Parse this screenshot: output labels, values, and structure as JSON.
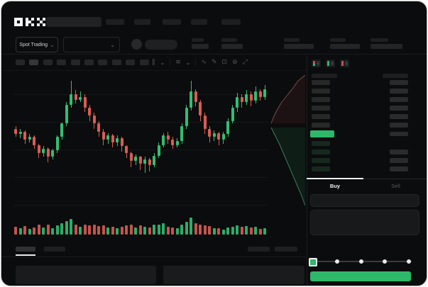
{
  "app": {
    "name": "OKX",
    "logo": "OKX"
  },
  "header": {
    "nav_placeholder_count": 5,
    "ticker_stat_count": 5
  },
  "trading_bar": {
    "market_selector_label": "Spot Trading",
    "chevron_glyph": "⌄"
  },
  "chart_toolbar": {
    "timeframe_button_count": 10,
    "active_timeframe_index": 1,
    "icons": [
      "candle-type-icon",
      "chevron-down-icon",
      "indicators-icon",
      "chevron-down-icon",
      "wave-icon",
      "draw-icon",
      "snapshot-icon",
      "settings-icon",
      "fullscreen-icon"
    ],
    "icon_glyphs": {
      "wave": "∿",
      "draw": "✎",
      "snapshot": "⊡",
      "settings": "⊚",
      "fullscreen": "⤢",
      "chevron": "⌄",
      "candles": "∥"
    }
  },
  "chart_data": {
    "type": "candlestick",
    "title": "",
    "x_count": 55,
    "price_range": [
      0,
      100
    ],
    "up_color": "#31be72",
    "down_color": "#d95c54",
    "grid": true,
    "grid_line_count": 5,
    "ohlc": [
      [
        58,
        54,
        60,
        52
      ],
      [
        54,
        56,
        58,
        51
      ],
      [
        56,
        50,
        57,
        47
      ],
      [
        50,
        52,
        54,
        48
      ],
      [
        52,
        46,
        53,
        43
      ],
      [
        46,
        40,
        47,
        36
      ],
      [
        40,
        43,
        45,
        37
      ],
      [
        43,
        37,
        44,
        33
      ],
      [
        37,
        42,
        43,
        35
      ],
      [
        42,
        52,
        53,
        40
      ],
      [
        52,
        62,
        63,
        50
      ],
      [
        62,
        76,
        78,
        60
      ],
      [
        76,
        84,
        94,
        74
      ],
      [
        84,
        80,
        87,
        77
      ],
      [
        80,
        82,
        86,
        78
      ],
      [
        82,
        74,
        84,
        71
      ],
      [
        74,
        68,
        76,
        64
      ],
      [
        68,
        62,
        70,
        58
      ],
      [
        62,
        56,
        64,
        52
      ],
      [
        56,
        50,
        58,
        46
      ],
      [
        50,
        53,
        55,
        47
      ],
      [
        53,
        48,
        54,
        44
      ],
      [
        48,
        51,
        53,
        45
      ],
      [
        51,
        45,
        52,
        41
      ],
      [
        45,
        40,
        46,
        36
      ],
      [
        40,
        34,
        41,
        29
      ],
      [
        34,
        37,
        39,
        31
      ],
      [
        37,
        32,
        38,
        27
      ],
      [
        32,
        35,
        37,
        25
      ],
      [
        35,
        31,
        36,
        26
      ],
      [
        31,
        38,
        40,
        29
      ],
      [
        38,
        46,
        48,
        36
      ],
      [
        46,
        53,
        55,
        44
      ],
      [
        53,
        50,
        56,
        47
      ],
      [
        50,
        46,
        52,
        43
      ],
      [
        46,
        49,
        51,
        44
      ],
      [
        49,
        60,
        62,
        47
      ],
      [
        60,
        74,
        76,
        58
      ],
      [
        74,
        86,
        94,
        72
      ],
      [
        86,
        78,
        88,
        75
      ],
      [
        78,
        68,
        80,
        64
      ],
      [
        68,
        58,
        70,
        54
      ],
      [
        58,
        52,
        60,
        48
      ],
      [
        52,
        55,
        57,
        49
      ],
      [
        55,
        50,
        56,
        46
      ],
      [
        50,
        54,
        56,
        47
      ],
      [
        54,
        64,
        66,
        52
      ],
      [
        64,
        74,
        76,
        62
      ],
      [
        74,
        82,
        85,
        71
      ],
      [
        82,
        78,
        84,
        74
      ],
      [
        78,
        84,
        87,
        76
      ],
      [
        84,
        79,
        86,
        75
      ],
      [
        79,
        86,
        90,
        77
      ],
      [
        86,
        82,
        88,
        79
      ],
      [
        82,
        88,
        91,
        80
      ]
    ],
    "volume": [
      38,
      28,
      42,
      24,
      33,
      52,
      30,
      48,
      26,
      44,
      58,
      72,
      85,
      48,
      38,
      52,
      44,
      48,
      40,
      46,
      33,
      38,
      28,
      36,
      44,
      52,
      33,
      46,
      38,
      30,
      48,
      52,
      58,
      38,
      33,
      28,
      52,
      68,
      95,
      58,
      52,
      46,
      40,
      28,
      28,
      20,
      33,
      38,
      44,
      36,
      40,
      33,
      38,
      22,
      28
    ],
    "depth": {
      "asks_line": [
        [
          50,
          6
        ],
        [
          40,
          14
        ],
        [
          33,
          24
        ],
        [
          25,
          34
        ],
        [
          17,
          44
        ],
        [
          11,
          54
        ],
        [
          6,
          64
        ],
        [
          2,
          74
        ]
      ],
      "bids_line": [
        [
          2,
          80
        ],
        [
          8,
          92
        ],
        [
          14,
          104
        ],
        [
          20,
          118
        ],
        [
          26,
          132
        ],
        [
          32,
          146
        ],
        [
          38,
          160
        ],
        [
          44,
          174
        ],
        [
          50,
          190
        ]
      ],
      "asks_color": "#7c4a4a",
      "bids_color": "#3f7a5f",
      "asks_fill": "rgba(200,80,80,0.10)",
      "bids_fill": "rgba(46,184,106,0.10)"
    }
  },
  "order_book": {
    "view_icons": [
      "book-both-icon",
      "book-bids-icon",
      "book-asks-icon"
    ],
    "ask_row_count": 6,
    "bid_row_count": 4,
    "bid_rows_with_amount": [
      false,
      true,
      true,
      true
    ],
    "price_highlight_color": "#2eb86a",
    "ask_bar_color": "#272929",
    "bid_bar_color": "#17291f",
    "amount_bar_color": "#292b2c"
  },
  "trade_panel": {
    "buy_tab_label": "Buy",
    "sell_tab_label": "Sell",
    "active_tab": "Buy",
    "field_count": 2,
    "slider_positions": [
      0,
      25,
      50,
      75,
      100
    ],
    "slider_value": 0,
    "buy_button_color": "#2eb86a"
  },
  "colors": {
    "window_bg": "#0b0c0d",
    "panel_bg": "#131415",
    "accent_green": "#2eb86a",
    "accent_red": "#d95c54",
    "placeholder": "#232526",
    "divider": "#1a1c1d",
    "text_primary": "#eef0f2",
    "text_dim": "#55595c"
  }
}
